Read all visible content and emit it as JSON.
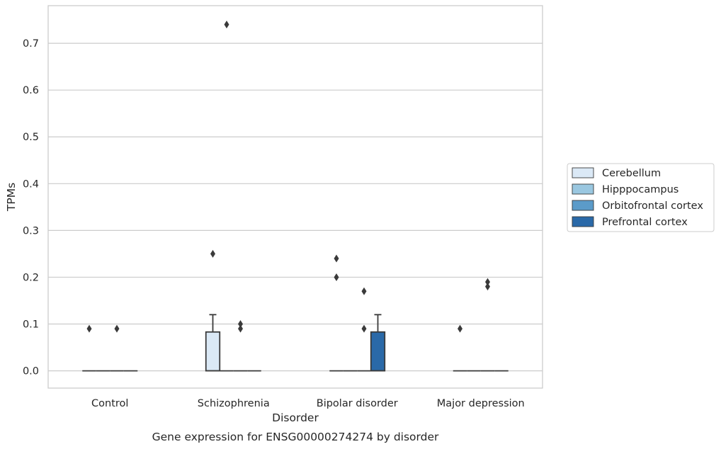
{
  "chart_data": {
    "type": "box",
    "title": "",
    "caption": "Gene expression for ENSG00000274274 by disorder",
    "xlabel": "Disorder",
    "ylabel": "TPMs",
    "ylim": [
      -0.036,
      0.78
    ],
    "yticks": [
      0.0,
      0.1,
      0.2,
      0.3,
      0.4,
      0.5,
      0.6,
      0.7
    ],
    "ytick_labels": [
      "0.0",
      "0.1",
      "0.2",
      "0.3",
      "0.4",
      "0.5",
      "0.6",
      "0.7"
    ],
    "categories": [
      "Control",
      "Schizophrenia",
      "Bipolar disorder",
      "Major depression"
    ],
    "grid": "horizontal",
    "legend_position": "right",
    "series": [
      {
        "name": "Cerebellum",
        "color": "#dbe9f6",
        "boxes": [
          {
            "q1": 0,
            "median": 0,
            "q3": 0,
            "whisker_low": 0,
            "whisker_high": 0,
            "outliers": [
              0.09
            ]
          },
          {
            "q1": 0,
            "median": 0,
            "q3": 0.083,
            "whisker_low": 0,
            "whisker_high": 0.12,
            "outliers": [
              0.25
            ]
          },
          {
            "q1": 0,
            "median": 0,
            "q3": 0,
            "whisker_low": 0,
            "whisker_high": 0,
            "outliers": [
              0.24,
              0.2
            ]
          },
          {
            "q1": 0,
            "median": 0,
            "q3": 0,
            "whisker_low": 0,
            "whisker_high": 0,
            "outliers": [
              0.09
            ]
          }
        ]
      },
      {
        "name": "Hipppocampus",
        "color": "#9ac7e0",
        "boxes": [
          {
            "q1": 0,
            "median": 0,
            "q3": 0,
            "whisker_low": 0,
            "whisker_high": 0,
            "outliers": []
          },
          {
            "q1": 0,
            "median": 0,
            "q3": 0,
            "whisker_low": 0,
            "whisker_high": 0,
            "outliers": [
              0.74
            ]
          },
          {
            "q1": 0,
            "median": 0,
            "q3": 0,
            "whisker_low": 0,
            "whisker_high": 0,
            "outliers": []
          },
          {
            "q1": 0,
            "median": 0,
            "q3": 0,
            "whisker_low": 0,
            "whisker_high": 0,
            "outliers": []
          }
        ]
      },
      {
        "name": "Orbitofrontal cortex",
        "color": "#5b9bc9",
        "boxes": [
          {
            "q1": 0,
            "median": 0,
            "q3": 0,
            "whisker_low": 0,
            "whisker_high": 0,
            "outliers": [
              0.09
            ]
          },
          {
            "q1": 0,
            "median": 0,
            "q3": 0,
            "whisker_low": 0,
            "whisker_high": 0,
            "outliers": [
              0.1,
              0.09
            ]
          },
          {
            "q1": 0,
            "median": 0,
            "q3": 0,
            "whisker_low": 0,
            "whisker_high": 0,
            "outliers": [
              0.17,
              0.09
            ]
          },
          {
            "q1": 0,
            "median": 0,
            "q3": 0,
            "whisker_low": 0,
            "whisker_high": 0,
            "outliers": [
              0.19,
              0.18
            ]
          }
        ]
      },
      {
        "name": "Prefrontal cortex",
        "color": "#2a69a8",
        "boxes": [
          {
            "q1": 0,
            "median": 0,
            "q3": 0,
            "whisker_low": 0,
            "whisker_high": 0,
            "outliers": []
          },
          {
            "q1": 0,
            "median": 0,
            "q3": 0,
            "whisker_low": 0,
            "whisker_high": 0,
            "outliers": []
          },
          {
            "q1": 0,
            "median": 0,
            "q3": 0.083,
            "whisker_low": 0,
            "whisker_high": 0.12,
            "outliers": []
          },
          {
            "q1": 0,
            "median": 0,
            "q3": 0,
            "whisker_low": 0,
            "whisker_high": 0,
            "outliers": []
          }
        ]
      }
    ],
    "colors": {
      "edge": "#3a3a3a",
      "grid": "#cccccc",
      "spine": "#cccccc",
      "text": "#262626"
    }
  }
}
